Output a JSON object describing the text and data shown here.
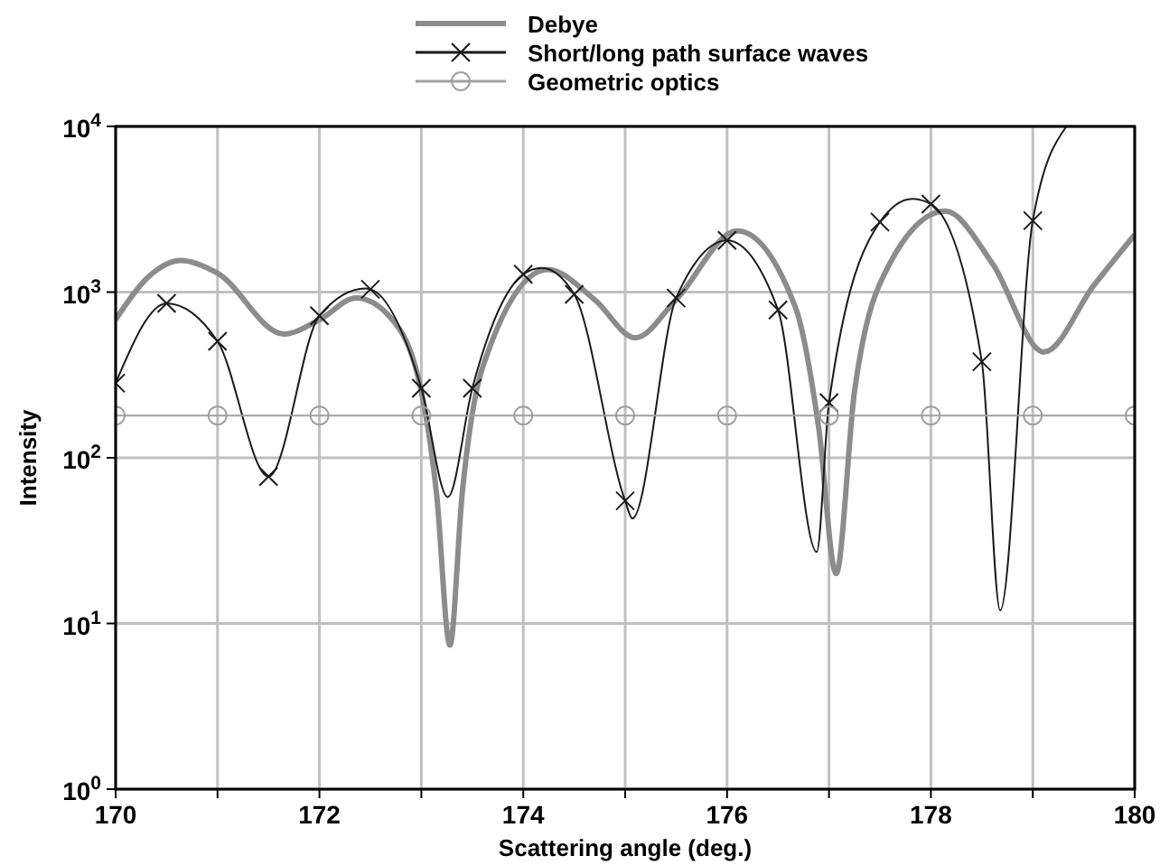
{
  "chart_data": {
    "type": "line",
    "xlabel": "Scattering angle (deg.)",
    "ylabel": "Intensity",
    "log": "y",
    "grid": true,
    "legend": "top",
    "xlim": [
      170,
      180
    ],
    "ylim": [
      1,
      10000
    ],
    "xticks": [
      170,
      {
        "value": 171,
        "label": null
      },
      172,
      {
        "value": 173,
        "label": null
      },
      174,
      {
        "value": 175,
        "label": null
      },
      176,
      {
        "value": 177,
        "label": null
      },
      178,
      {
        "value": 179,
        "label": null
      },
      180
    ],
    "yticks": [
      {
        "value": 1,
        "label": "10$^{0}$"
      },
      {
        "value": 10,
        "label": "10$^{1}$"
      },
      {
        "value": 100,
        "label": "10$^{2}$"
      },
      {
        "value": 1000,
        "label": "10$^{3}$"
      },
      {
        "value": 10000,
        "label": "10$^{4}$"
      }
    ],
    "series": [
      {
        "name": "Debye",
        "type": "line",
        "color": "#8c8c8c",
        "marker": "none",
        "x": [
          170,
          170.3,
          170.64,
          171,
          171.65,
          172,
          172.36,
          172.7,
          173,
          173.15,
          173.28,
          173.4,
          173.6,
          174.24,
          174.7,
          175.1,
          175.5,
          176.1,
          176.67,
          176.9,
          177.07,
          177.25,
          177.6,
          178.14,
          178.6,
          179.11,
          179.6,
          180
        ],
        "values": [
          682,
          1200,
          1550,
          1300,
          558,
          680,
          922,
          700,
          251,
          60,
          7.4,
          60,
          350,
          1370,
          900,
          530,
          900,
          2340,
          810,
          150,
          20,
          250,
          1500,
          3080,
          1500,
          435,
          1100,
          2220
        ]
      },
      {
        "type": "line",
        "color": "#1a1a1a",
        "marker": "none",
        "x": [
          170,
          170.5,
          171,
          171.5,
          172,
          172.45,
          172.5,
          173,
          173.26,
          173.5,
          174,
          174.18,
          174.5,
          175,
          175.07,
          175.5,
          176,
          176.5,
          176.88,
          177,
          177.5,
          177.82,
          178,
          178.5,
          178.68,
          179,
          179.33
        ],
        "values": [
          282,
          855,
          505,
          77,
          720,
          1050,
          1040,
          263,
          58,
          263,
          1280,
          1400,
          970,
          55,
          43,
          920,
          2050,
          780,
          27,
          215,
          2650,
          3650,
          3400,
          380,
          12,
          2700,
          10000
        ]
      },
      {
        "name": "Short/long path surface waves",
        "type": "scatter",
        "color": "#1a1a1a",
        "marker": "cross",
        "x": [
          170,
          170.5,
          171,
          171.5,
          172,
          172.5,
          173,
          173.5,
          174,
          174.5,
          175,
          175.5,
          176,
          176.5,
          177,
          177.5,
          178,
          178.5,
          179
        ],
        "values": [
          282,
          855,
          505,
          77,
          720,
          1040,
          263,
          263,
          1280,
          970,
          55,
          920,
          2050,
          780,
          215,
          2650,
          3400,
          380,
          2700
        ]
      },
      {
        "name": "Geometric optics",
        "type": "line",
        "color": "#a0a0a0",
        "marker": "circle",
        "x": [
          170,
          171,
          172,
          173,
          174,
          175,
          176,
          177,
          178,
          179,
          180
        ],
        "values": [
          180,
          180,
          180,
          180,
          180,
          180,
          180,
          180,
          180,
          180,
          180
        ]
      }
    ]
  }
}
